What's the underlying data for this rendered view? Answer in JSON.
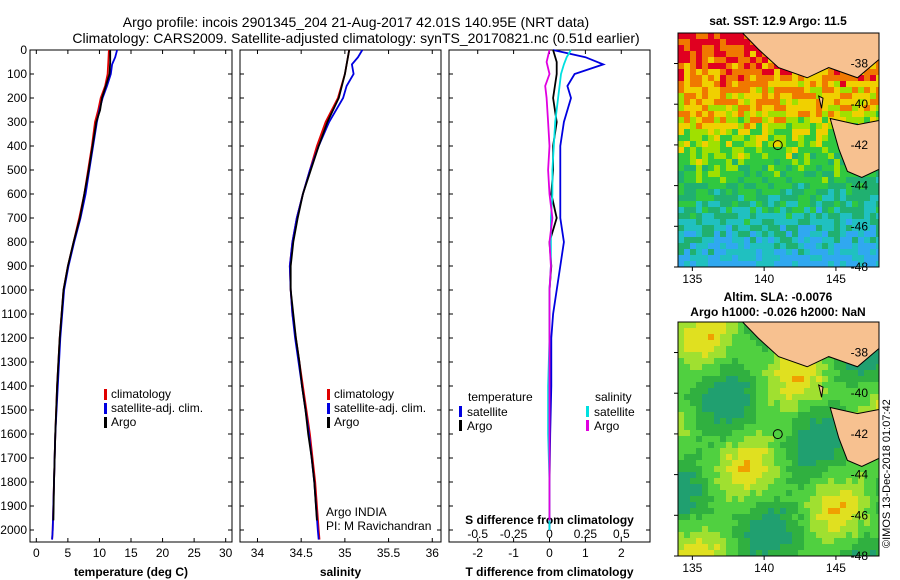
{
  "title": {
    "line1": "Argo profile: incois 2901345_204 21-Aug-2017 42.01S 140.95E (NRT data)",
    "line2": "Climatology: CARS2009. Satellite-adjusted climatology: synTS_20170821.nc (0.51d earlier)"
  },
  "colors": {
    "climatology": "#e00000",
    "satellite": "#0000e0",
    "argo": "#000000",
    "sat_salinity": "#00e0e0",
    "argo_salinity": "#e000e0",
    "land": "#f7c190"
  },
  "depth_ticks": [
    "0",
    "100",
    "200",
    "300",
    "400",
    "500",
    "600",
    "700",
    "800",
    "900",
    "1000",
    "1100",
    "1200",
    "1300",
    "1400",
    "1500",
    "1600",
    "1700",
    "1800",
    "1900",
    "2000"
  ],
  "watermark": "©IMOS 13-Dec-2018 01:07:42",
  "chart_data": [
    {
      "type": "line",
      "name": "temperature",
      "xlabel": "temperature (deg C)",
      "ylim": [
        0,
        2050
      ],
      "xlim": [
        -1,
        31
      ],
      "xticks": [
        0,
        5,
        10,
        15,
        20,
        25,
        30
      ],
      "legend": [
        "climatology",
        "satellite-adj. clim.",
        "Argo"
      ],
      "legend_placement": "lower-middle",
      "series": [
        {
          "name": "climatology",
          "color": "#e00000",
          "depth": [
            0,
            50,
            100,
            150,
            200,
            250,
            300,
            400,
            500,
            600,
            700,
            800,
            900,
            1000,
            1200,
            1400,
            1600,
            1800,
            2000,
            2040
          ],
          "values": [
            11.5,
            11.4,
            11.3,
            10.9,
            10.2,
            9.8,
            9.3,
            8.8,
            8.2,
            7.6,
            6.8,
            5.9,
            5.0,
            4.3,
            3.7,
            3.3,
            3.0,
            2.8,
            2.6,
            2.5
          ]
        },
        {
          "name": "satellite-adj. clim.",
          "color": "#0000e0",
          "depth": [
            0,
            30,
            60,
            100,
            150,
            200,
            250,
            300,
            400,
            500,
            600,
            700,
            800,
            900,
            1000,
            1200,
            1400,
            1600,
            1800,
            2000,
            2040
          ],
          "values": [
            12.8,
            12.5,
            12.0,
            11.8,
            11.2,
            10.5,
            10.0,
            9.6,
            9.0,
            8.4,
            7.8,
            7.0,
            6.0,
            5.1,
            4.4,
            3.8,
            3.4,
            3.0,
            2.8,
            2.6,
            2.5
          ]
        },
        {
          "name": "Argo",
          "color": "#000000",
          "depth": [
            0,
            50,
            100,
            150,
            200,
            250,
            300,
            400,
            500,
            600,
            700,
            800,
            900,
            1000,
            1200,
            1400,
            1600,
            1800,
            1960
          ],
          "values": [
            11.7,
            11.7,
            11.6,
            11.0,
            10.4,
            10.1,
            9.5,
            8.9,
            8.3,
            7.6,
            6.9,
            5.9,
            5.0,
            4.3,
            3.7,
            3.3,
            3.0,
            2.8,
            2.7
          ]
        }
      ]
    },
    {
      "type": "line",
      "name": "salinity",
      "xlabel": "salinity",
      "ylim": [
        0,
        2050
      ],
      "xlim": [
        33.8,
        36.1
      ],
      "xticks": [
        34,
        34.5,
        35,
        35.5,
        36
      ],
      "legend": [
        "climatology",
        "satellite-adj. clim.",
        "Argo"
      ],
      "legend_placement": "lower-right",
      "annotation": [
        "Argo INDIA",
        "PI: M Ravichandran"
      ],
      "series": [
        {
          "name": "climatology",
          "color": "#e00000",
          "depth": [
            0,
            100,
            200,
            300,
            400,
            500,
            600,
            700,
            800,
            900,
            1000,
            1100,
            1200,
            1400,
            1600,
            1800,
            2000,
            2040
          ],
          "values": [
            35.05,
            35.0,
            34.92,
            34.78,
            34.68,
            34.6,
            34.52,
            34.45,
            34.4,
            34.37,
            34.38,
            34.4,
            34.44,
            34.52,
            34.6,
            34.66,
            34.7,
            34.71
          ]
        },
        {
          "name": "satellite-adj. clim.",
          "color": "#0000e0",
          "depth": [
            0,
            30,
            60,
            100,
            150,
            200,
            300,
            400,
            500,
            600,
            700,
            800,
            900,
            1000,
            1100,
            1200,
            1400,
            1600,
            1800,
            2000,
            2040
          ],
          "values": [
            35.2,
            35.15,
            35.08,
            35.1,
            35.02,
            34.98,
            34.82,
            34.7,
            34.6,
            34.52,
            34.45,
            34.4,
            34.37,
            34.38,
            34.4,
            34.43,
            34.51,
            34.59,
            34.65,
            34.69,
            34.7
          ]
        },
        {
          "name": "Argo",
          "color": "#000000",
          "depth": [
            0,
            100,
            200,
            300,
            400,
            500,
            600,
            700,
            800,
            900,
            1000,
            1100,
            1200,
            1300,
            1400,
            1500,
            1600,
            1700,
            1800,
            1960
          ],
          "values": [
            35.05,
            35.0,
            34.93,
            34.8,
            34.7,
            34.61,
            34.52,
            34.46,
            34.41,
            34.38,
            34.38,
            34.41,
            34.44,
            34.48,
            34.51,
            34.55,
            34.58,
            34.62,
            34.65,
            34.68
          ]
        }
      ]
    },
    {
      "type": "line",
      "name": "difference from climatology",
      "xlabel": "T difference from climatology",
      "x2label": "S difference from climatology",
      "ylim": [
        0,
        2050
      ],
      "xlim": [
        -2.8,
        2.8
      ],
      "xticks": [
        -2,
        -1,
        0,
        1,
        2
      ],
      "x2ticks": [
        "-0.5",
        "-0.25",
        "0",
        "0.25",
        "0.5"
      ],
      "legend_groups": [
        {
          "title": "temperature",
          "entries": [
            "satellite",
            "Argo"
          ]
        },
        {
          "title": "salinity",
          "entries": [
            "satellite",
            "Argo"
          ]
        }
      ],
      "series": [
        {
          "name": "temperature satellite",
          "color": "#0000e0",
          "depth": [
            0,
            30,
            60,
            100,
            150,
            200,
            300,
            400,
            500,
            600,
            700,
            800,
            900,
            1000,
            1100,
            1200,
            1400,
            1600,
            1800,
            2000
          ],
          "values": [
            0.1,
            1.0,
            1.5,
            0.7,
            0.5,
            0.6,
            0.4,
            0.3,
            0.3,
            0.3,
            0.3,
            0.4,
            0.3,
            0.2,
            0.1,
            0.05,
            0.05,
            0.02,
            0.0,
            0.0
          ]
        },
        {
          "name": "temperature Argo",
          "color": "#000000",
          "depth": [
            0,
            50,
            100,
            150,
            200,
            300,
            400,
            500,
            600,
            700,
            800,
            900,
            1000,
            1200,
            1400,
            1600,
            1800,
            1960
          ],
          "values": [
            0.1,
            0.2,
            0.2,
            0.15,
            0.1,
            0.2,
            0.1,
            0.1,
            0.05,
            0.2,
            0.0,
            0.05,
            0.0,
            0.0,
            0.0,
            0.0,
            0.0,
            0.0
          ]
        },
        {
          "name": "salinity satellite",
          "color": "#00e0e0",
          "depth": [
            0,
            30,
            60,
            100,
            200,
            300,
            400,
            500,
            600,
            700,
            800,
            900,
            1000,
            1200,
            1400,
            1600,
            1800,
            2000
          ],
          "values": [
            0.15,
            0.12,
            0.1,
            0.08,
            0.06,
            0.04,
            0.03,
            0.02,
            0.02,
            0.01,
            0.01,
            0.01,
            0.0,
            0.0,
            -0.01,
            -0.01,
            0.0,
            0.0
          ]
        },
        {
          "name": "salinity Argo",
          "color": "#e000e0",
          "depth": [
            0,
            50,
            100,
            150,
            200,
            300,
            400,
            500,
            600,
            700,
            800,
            900,
            1000,
            1200,
            1400,
            1600,
            1800,
            1960
          ],
          "values": [
            0.0,
            -0.02,
            0.0,
            -0.03,
            -0.02,
            -0.01,
            0.0,
            -0.01,
            0.0,
            0.02,
            0.0,
            0.01,
            0.0,
            0.0,
            0.0,
            0.0,
            0.0,
            0.0
          ]
        }
      ]
    },
    {
      "type": "heatmap",
      "name": "sst map",
      "title": "sat. SST: 12.9 Argo: 11.5",
      "xticks": [
        135,
        140,
        145
      ],
      "yticks": [
        -38,
        -40,
        -42,
        -44,
        -46,
        -48
      ],
      "xlim": [
        134,
        148
      ],
      "ylim": [
        -48,
        -36.5
      ],
      "marker": {
        "lon": 140.95,
        "lat": -42.01
      }
    },
    {
      "type": "heatmap",
      "name": "sla map",
      "title": [
        "Altim. SLA: -0.0076",
        "Argo h1000: -0.026 h2000: NaN"
      ],
      "xticks": [
        135,
        140,
        145
      ],
      "yticks": [
        -38,
        -40,
        -42,
        -44,
        -46,
        -48
      ],
      "xlim": [
        134,
        148
      ],
      "ylim": [
        -48,
        -36.5
      ],
      "marker": {
        "lon": 140.95,
        "lat": -42.01
      }
    }
  ]
}
